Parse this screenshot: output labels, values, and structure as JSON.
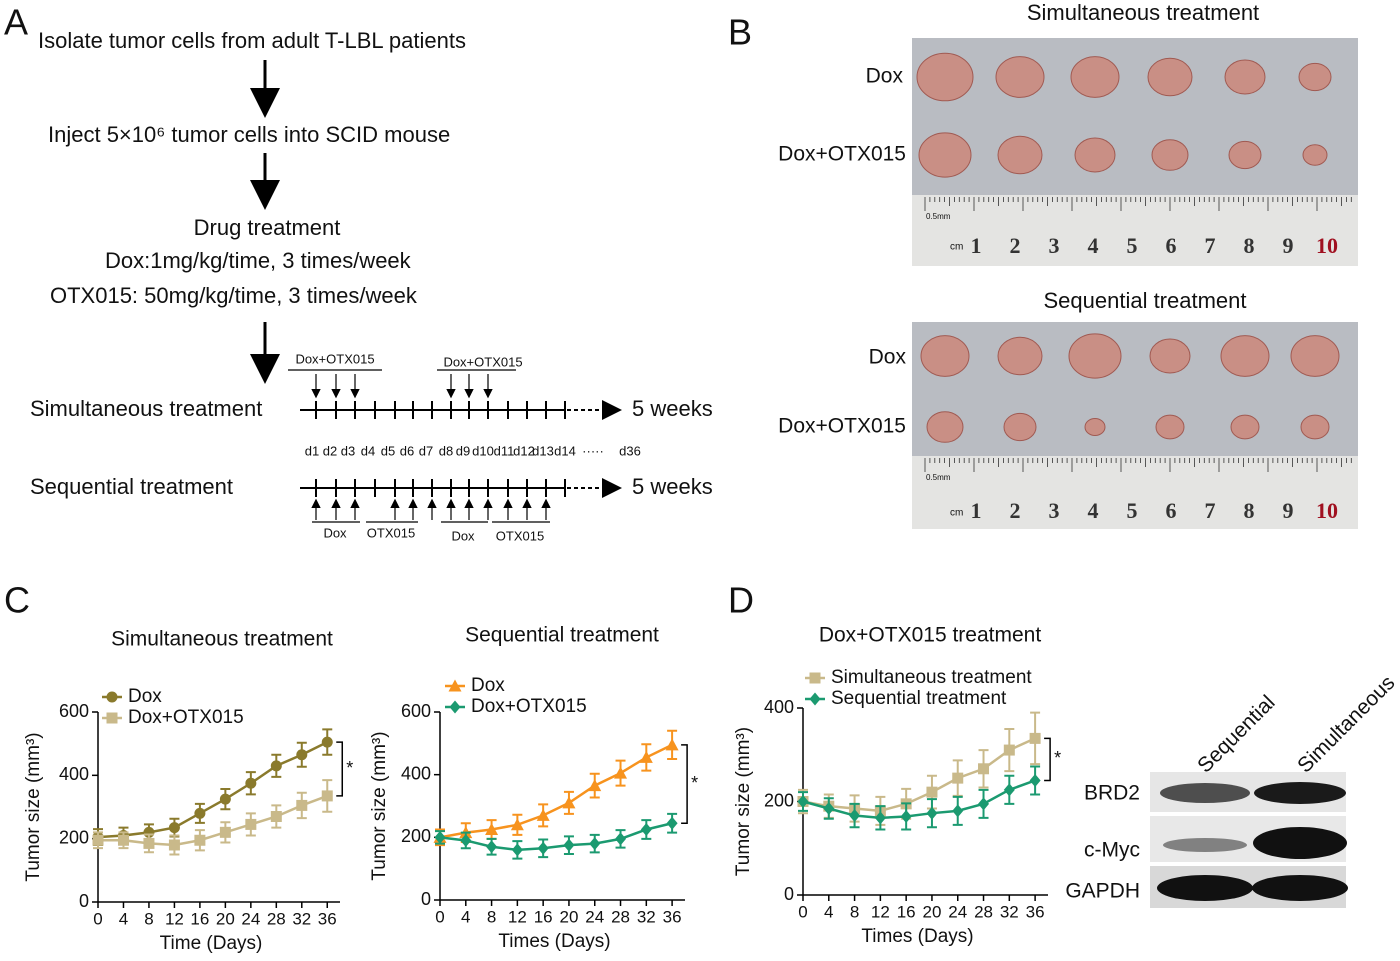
{
  "panel_labels": [
    "A",
    "B",
    "C",
    "D"
  ],
  "diagram": {
    "steps": [
      "Isolate tumor cells from adult T-LBL patients",
      "Inject 5×10⁶ tumor cells into SCID mouse",
      "Drug treatment",
      "Dox:1mg/kg/time, 3 times/week",
      "OTX015: 50mg/kg/time, 3 times/week"
    ],
    "timelines": [
      {
        "label": "Simultaneous treatment",
        "duration": "5 weeks",
        "doses": [
          "Dox+OTX015",
          "Dox+OTX015"
        ]
      },
      {
        "label": "Sequential treatment",
        "duration": "5 weeks",
        "doses": [
          "Dox",
          "OTX015",
          "Dox",
          "OTX015"
        ]
      }
    ],
    "day_labels": [
      "d1",
      "d2",
      "d3",
      "d4",
      "d5",
      "d6",
      "d7",
      "d8",
      "d9",
      "d10",
      "d11",
      "d12",
      "d13",
      "d14",
      "·····",
      "d36"
    ]
  },
  "photos": [
    {
      "title": "Simultaneous treatment",
      "rows": [
        "Dox",
        "Dox+OTX015"
      ]
    },
    {
      "title": "Sequential treatment",
      "rows": [
        "Dox",
        "Dox+OTX015"
      ]
    }
  ],
  "ruler": {
    "unit": "cm",
    "scale": "0.5mm",
    "numbers": [
      "1",
      "2",
      "3",
      "4",
      "5",
      "6",
      "7",
      "8",
      "9",
      "10"
    ]
  },
  "chart_data": [
    {
      "type": "line",
      "title": "Simultaneous treatment",
      "xlabel": "Time (Days)",
      "ylabel": "Tumor size (mm³)",
      "x": [
        0,
        4,
        8,
        12,
        16,
        20,
        24,
        28,
        32,
        36
      ],
      "xlim": [
        0,
        38
      ],
      "xticks": [
        0,
        4,
        8,
        12,
        16,
        20,
        24,
        28,
        32,
        36
      ],
      "ylim": [
        0,
        600
      ],
      "yticks": [
        0,
        200,
        400,
        600
      ],
      "annotation": "*",
      "series": [
        {
          "name": "Dox",
          "color": "#8a7a2c",
          "marker": "circle",
          "values": [
            205,
            210,
            220,
            235,
            280,
            325,
            375,
            430,
            465,
            505
          ],
          "errors": [
            25,
            25,
            25,
            28,
            30,
            32,
            35,
            35,
            38,
            40
          ]
        },
        {
          "name": "Dox+OTX015",
          "color": "#c9b98a",
          "marker": "square",
          "values": [
            195,
            195,
            185,
            180,
            195,
            220,
            245,
            270,
            305,
            335
          ],
          "errors": [
            25,
            25,
            28,
            30,
            32,
            32,
            35,
            35,
            40,
            50
          ]
        }
      ]
    },
    {
      "type": "line",
      "title": "Sequential treatment",
      "xlabel": "Times (Days)",
      "ylabel": "Tumor size (mm³)",
      "x": [
        0,
        4,
        8,
        12,
        16,
        20,
        24,
        28,
        32,
        36
      ],
      "xlim": [
        0,
        38
      ],
      "xticks": [
        0,
        4,
        8,
        12,
        16,
        20,
        24,
        28,
        32,
        36
      ],
      "ylim": [
        0,
        600
      ],
      "yticks": [
        0,
        200,
        400,
        600
      ],
      "annotation": "*",
      "series": [
        {
          "name": "Dox",
          "color": "#f7931e",
          "marker": "triangle",
          "values": [
            200,
            215,
            225,
            240,
            270,
            310,
            365,
            405,
            455,
            495
          ],
          "errors": [
            25,
            30,
            30,
            32,
            35,
            35,
            38,
            40,
            42,
            45
          ]
        },
        {
          "name": "Dox+OTX015",
          "color": "#1b9a70",
          "marker": "diamond",
          "values": [
            200,
            190,
            170,
            160,
            165,
            175,
            180,
            195,
            225,
            245
          ],
          "errors": [
            20,
            25,
            25,
            28,
            28,
            28,
            28,
            28,
            30,
            30
          ]
        }
      ]
    },
    {
      "type": "line",
      "title": "Dox+OTX015 treatment",
      "xlabel": "Times (Days)",
      "ylabel": "Tumor size (mm³)",
      "x": [
        0,
        4,
        8,
        12,
        16,
        20,
        24,
        28,
        32,
        36
      ],
      "xlim": [
        0,
        38
      ],
      "xticks": [
        0,
        4,
        8,
        12,
        16,
        20,
        24,
        28,
        32,
        36
      ],
      "ylim": [
        0,
        400
      ],
      "yticks": [
        0,
        200,
        400
      ],
      "annotation": "*",
      "series": [
        {
          "name": "Simultaneous treatment",
          "color": "#c9b98a",
          "marker": "square",
          "values": [
            200,
            190,
            185,
            180,
            195,
            220,
            250,
            270,
            310,
            335
          ],
          "errors": [
            25,
            25,
            28,
            30,
            32,
            35,
            38,
            40,
            45,
            55
          ]
        },
        {
          "name": "Sequential treatment",
          "color": "#1b9a70",
          "marker": "diamond",
          "values": [
            200,
            185,
            170,
            165,
            168,
            175,
            180,
            195,
            225,
            245
          ],
          "errors": [
            20,
            22,
            25,
            25,
            28,
            30,
            30,
            30,
            30,
            30
          ]
        }
      ]
    }
  ],
  "blot": {
    "lanes": [
      "Sequential",
      "Simultaneous"
    ],
    "proteins": [
      "BRD2",
      "c-Myc",
      "GAPDH"
    ]
  }
}
